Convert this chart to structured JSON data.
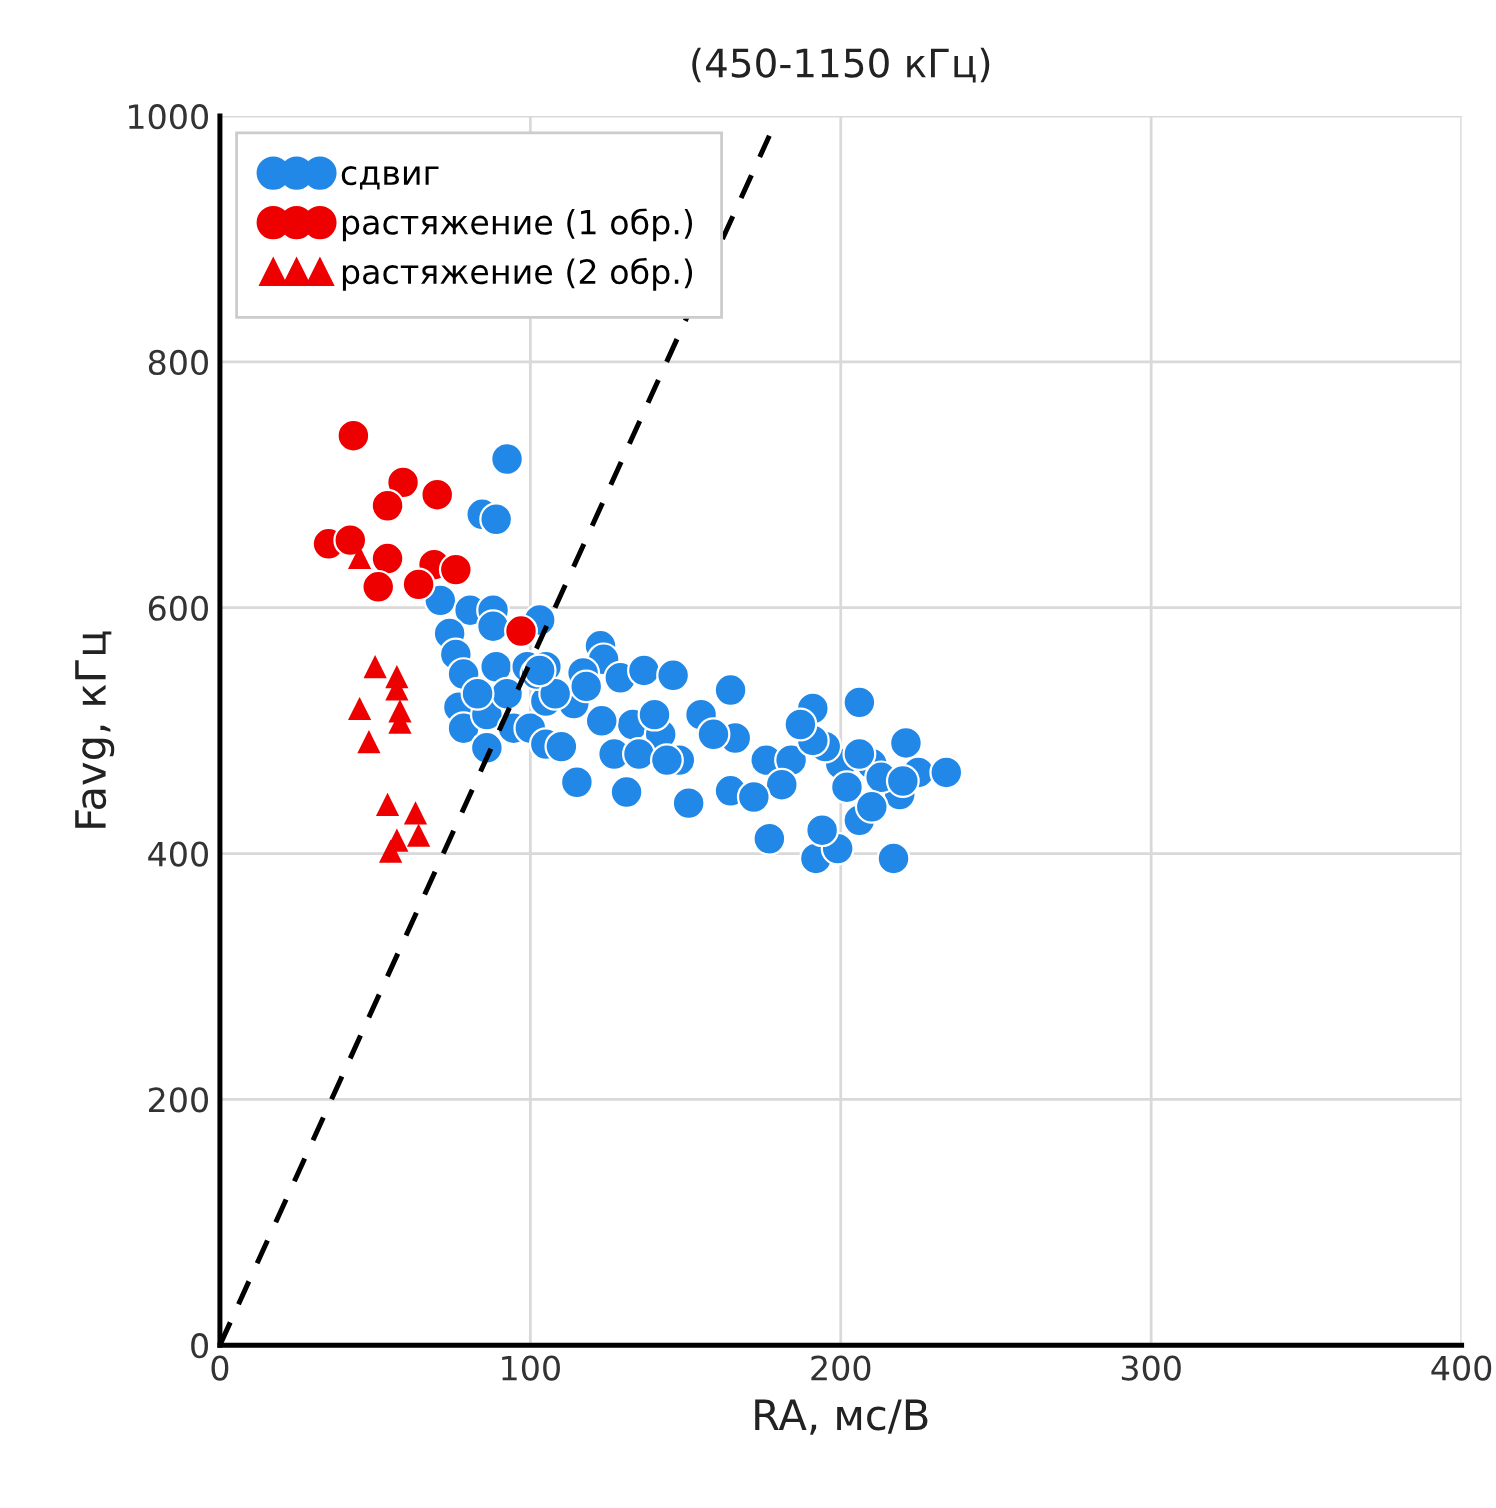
{
  "chart_data": {
    "type": "scatter",
    "title": "(450-1150 кГц)",
    "xlabel": "RA, мс/В",
    "ylabel": "Favg, кГц",
    "xlim": [
      0,
      400
    ],
    "ylim": [
      0,
      1000
    ],
    "xticks": [
      0,
      100,
      200,
      300,
      400
    ],
    "yticks": [
      0,
      200,
      400,
      600,
      800,
      1000
    ],
    "grid": true,
    "legend": "top left",
    "series": [
      {
        "name": "сдвиг",
        "color": "#2188e8",
        "marker": "circle",
        "x": [
          92.5,
          84.5,
          89,
          71,
          80.6,
          88,
          74,
          76,
          88,
          103,
          89,
          99,
          105,
          78.5,
          77,
          78.5,
          86,
          92.5,
          94.6,
          86,
          100,
          105,
          105,
          102,
          83,
          122.6,
          123.6,
          117,
          129,
          136.6,
          146,
          164.5,
          191,
          206,
          221,
          225,
          234,
          115,
          131,
          151,
          177,
          192,
          199,
          217,
          194,
          206,
          219,
          166,
          155,
          133,
          123,
          114,
          108,
          103,
          142,
          148,
          159,
          176,
          184,
          181,
          164.5,
          172,
          200,
          210,
          213,
          202,
          210,
          206,
          195,
          191,
          187,
          118,
          127,
          135,
          144,
          110,
          140,
          220
        ],
        "values": [
          721,
          676,
          672,
          606,
          598,
          598,
          579,
          562,
          585,
          590,
          552,
          552,
          552,
          546,
          519,
          502,
          513,
          530,
          502,
          486,
          502,
          524,
          489,
          546,
          530,
          569,
          558,
          547,
          543,
          549,
          545,
          533,
          518,
          523,
          490,
          466,
          466,
          458,
          450,
          441,
          412,
          396,
          404,
          396,
          419,
          427,
          448,
          494,
          513,
          505,
          508,
          522,
          530,
          549,
          497,
          476,
          497,
          476,
          476,
          456,
          451,
          446,
          473,
          473,
          462,
          454,
          438,
          481,
          487,
          492,
          505,
          536,
          481,
          481,
          476,
          487,
          513,
          459
        ]
      },
      {
        "name": "растяжение (1 обр.)",
        "color": "#ee0000",
        "marker": "circle",
        "x": [
          43,
          59,
          70,
          54,
          35,
          42,
          54,
          69,
          76,
          51,
          64,
          97
        ],
        "values": [
          740,
          702,
          692,
          683,
          652,
          655,
          640,
          635,
          631,
          617,
          619,
          581
        ]
      },
      {
        "name": "растяжение (2 обр.)",
        "color": "#ee0000",
        "marker": "triangle",
        "x": [
          45,
          50,
          57,
          57,
          45,
          58,
          58,
          48,
          54,
          63,
          64,
          57,
          55
        ],
        "values": [
          641,
          552,
          544,
          534,
          518,
          516,
          507,
          491,
          440,
          433,
          415,
          411,
          402
        ]
      },
      {
        "type": "line",
        "color": "#000000",
        "line_style": "dashed",
        "x": [
          0,
          177
        ],
        "values": [
          0,
          984
        ]
      }
    ]
  }
}
